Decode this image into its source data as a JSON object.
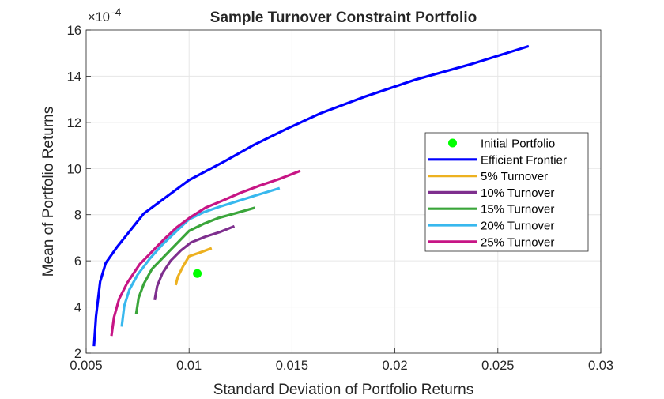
{
  "chart_data": {
    "type": "line",
    "title": "Sample Turnover Constraint Portfolio",
    "xlabel": "Standard Deviation of Portfolio Returns",
    "ylabel": "Mean of Portfolio Returns",
    "y_exponent_label": "×10",
    "y_exponent_power": "-4",
    "xlim": [
      0.005,
      0.03
    ],
    "ylim": [
      2,
      16
    ],
    "x_ticks": [
      0.005,
      0.01,
      0.015,
      0.02,
      0.025,
      0.03
    ],
    "x_tick_labels": [
      "0.005",
      "0.01",
      "0.015",
      "0.02",
      "0.025",
      "0.03"
    ],
    "y_ticks": [
      2,
      4,
      6,
      8,
      10,
      12,
      14,
      16
    ],
    "y_tick_labels": [
      "2",
      "4",
      "6",
      "8",
      "10",
      "12",
      "14",
      "16"
    ],
    "grid": true,
    "legend_position": "right",
    "initial_portfolio": {
      "name": "Initial Portfolio",
      "color": "#00ff00",
      "x": 0.0104,
      "y": 5.45
    },
    "series": [
      {
        "name": "Efficient Frontier",
        "color": "#0000ff",
        "x": [
          0.00538,
          0.00548,
          0.00568,
          0.00595,
          0.0065,
          0.0078,
          0.01,
          0.0117,
          0.0131,
          0.0147,
          0.0164,
          0.0185,
          0.021,
          0.0238,
          0.0265
        ],
        "y": [
          2.3,
          3.6,
          5.1,
          5.9,
          6.6,
          8.05,
          9.5,
          10.3,
          11.0,
          11.7,
          12.4,
          13.1,
          13.85,
          14.55,
          15.3
        ]
      },
      {
        "name": "5% Turnover",
        "color": "#edb120",
        "x": [
          0.00935,
          0.00945,
          0.0097,
          0.01,
          0.0105,
          0.0111
        ],
        "y": [
          4.95,
          5.3,
          5.75,
          6.2,
          6.35,
          6.55
        ]
      },
      {
        "name": "10% Turnover",
        "color": "#7e2f8e",
        "x": [
          0.00833,
          0.00845,
          0.0087,
          0.0091,
          0.0096,
          0.0101,
          0.0108,
          0.0115,
          0.0122
        ],
        "y": [
          4.3,
          4.9,
          5.45,
          6.0,
          6.45,
          6.8,
          7.05,
          7.25,
          7.5
        ]
      },
      {
        "name": "15% Turnover",
        "color": "#3aa53a",
        "x": [
          0.00743,
          0.00755,
          0.0078,
          0.0082,
          0.0088,
          0.0094,
          0.01,
          0.0107,
          0.0114,
          0.0122,
          0.0132
        ],
        "y": [
          3.7,
          4.4,
          5.0,
          5.65,
          6.2,
          6.75,
          7.3,
          7.6,
          7.85,
          8.05,
          8.3
        ]
      },
      {
        "name": "20% Turnover",
        "color": "#38b8ee",
        "x": [
          0.00673,
          0.00685,
          0.0071,
          0.0075,
          0.0081,
          0.0087,
          0.0094,
          0.01,
          0.0107,
          0.0115,
          0.0124,
          0.0133,
          0.0144
        ],
        "y": [
          3.15,
          4.05,
          4.75,
          5.4,
          6.1,
          6.7,
          7.3,
          7.8,
          8.1,
          8.35,
          8.6,
          8.85,
          9.15
        ]
      },
      {
        "name": "25% Turnover",
        "color": "#c71585",
        "x": [
          0.00623,
          0.00635,
          0.0066,
          0.007,
          0.0076,
          0.0082,
          0.0088,
          0.0094,
          0.01,
          0.0108,
          0.0116,
          0.0125,
          0.0134,
          0.0144,
          0.0154
        ],
        "y": [
          2.75,
          3.55,
          4.35,
          5.05,
          5.85,
          6.4,
          6.95,
          7.45,
          7.85,
          8.3,
          8.6,
          8.95,
          9.25,
          9.55,
          9.9
        ]
      }
    ]
  }
}
